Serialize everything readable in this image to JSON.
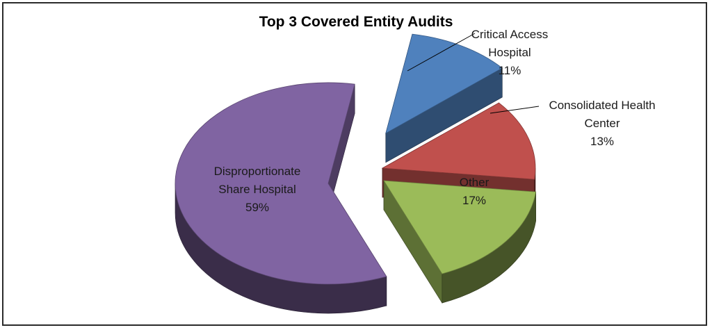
{
  "chart_data": {
    "type": "pie",
    "title": "Top 3 Covered Entity Audits",
    "slices": [
      {
        "label": "Critical Access Hospital",
        "label_lines": [
          "Critical Access",
          "Hospital"
        ],
        "value": 11,
        "value_label": "11%",
        "color": "#4f81bd",
        "exploded": true
      },
      {
        "label": "Consolidated Health Center",
        "label_lines": [
          "Consolidated Health",
          "Center"
        ],
        "value": 13,
        "value_label": "13%",
        "color": "#c0504d",
        "exploded": false
      },
      {
        "label": "Other",
        "label_lines": [
          "Other"
        ],
        "value": 17,
        "value_label": "17%",
        "color": "#9bbb59",
        "exploded": false
      },
      {
        "label": "Disproportionate Share Hospital",
        "label_lines": [
          "Disproportionate",
          "Share Hospital"
        ],
        "value": 59,
        "value_label": "59%",
        "color": "#8064a2",
        "exploded": false
      }
    ],
    "style": "3d-exploded"
  }
}
